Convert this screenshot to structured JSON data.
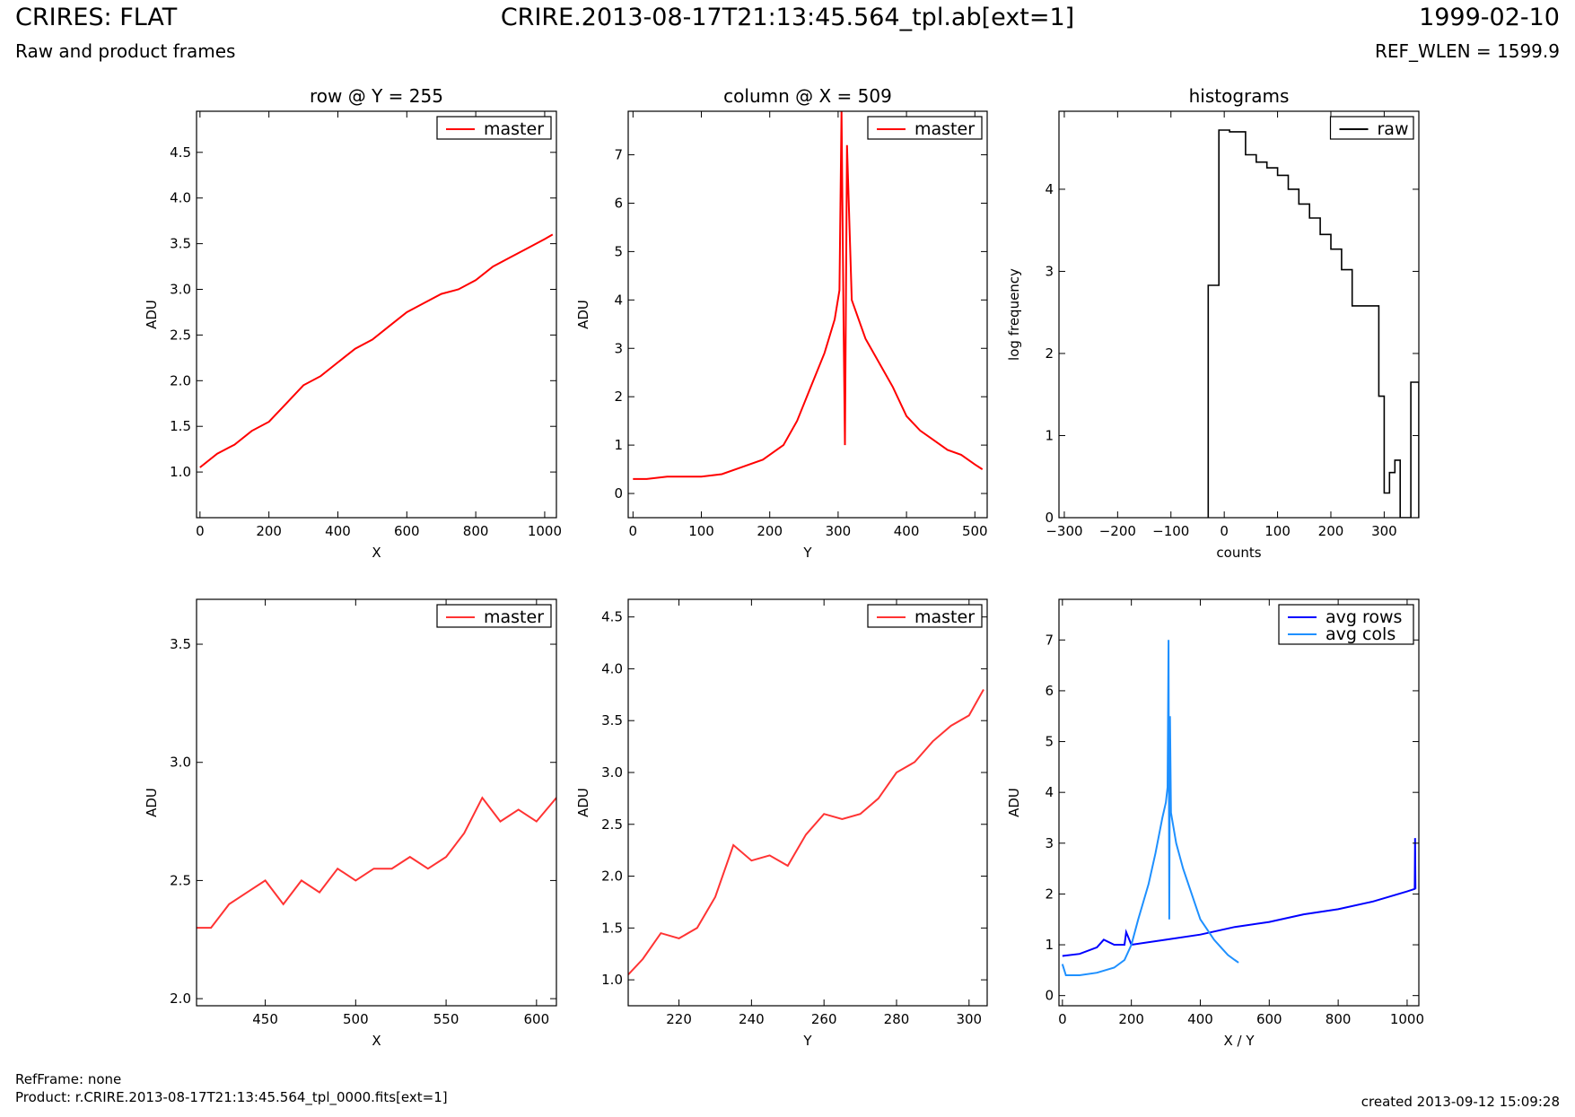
{
  "header": {
    "title": "CRIRES: FLAT",
    "subtitle": "Raw and product frames",
    "file": "CRIRE.2013-08-17T21:13:45.564_tpl.ab[ext=1]",
    "date": "1999-02-10",
    "ref_wlen": "REF_WLEN = 1599.9"
  },
  "footer": {
    "refframe": "RefFrame: none",
    "product": "Product: r.CRIRE.2013-08-17T21:13:45.564_tpl_0000.fits[ext=1]",
    "created": "created 2013-09-12 15:09:28"
  },
  "colors": {
    "red": "#ff0000",
    "light_red": "#ff3333",
    "blue": "#0000ff",
    "light_blue": "#1e90ff",
    "black": "#000000"
  },
  "chart_data": [
    {
      "id": "row",
      "type": "line",
      "title": "row @ Y = 255",
      "xlabel": "X",
      "ylabel": "ADU",
      "xlim": [
        -10,
        1034
      ],
      "ylim": [
        0.5,
        4.95
      ],
      "xticks": [
        0,
        200,
        400,
        600,
        800,
        1000
      ],
      "yticks": [
        1.0,
        1.5,
        2.0,
        2.5,
        3.0,
        3.5,
        4.0,
        4.5
      ],
      "legend": "top-right",
      "series": [
        {
          "name": "master",
          "color": "#ff0000",
          "x": [
            0,
            50,
            100,
            150,
            200,
            250,
            300,
            350,
            400,
            450,
            500,
            550,
            600,
            650,
            700,
            750,
            800,
            850,
            900,
            950,
            1000,
            1023
          ],
          "y": [
            1.05,
            1.2,
            1.3,
            1.45,
            1.55,
            1.75,
            1.95,
            2.05,
            2.2,
            2.35,
            2.45,
            2.6,
            2.75,
            2.85,
            2.95,
            3.0,
            3.1,
            3.25,
            3.35,
            3.45,
            3.55,
            3.6
          ]
        }
      ]
    },
    {
      "id": "col",
      "type": "line",
      "title": "column @ X = 509",
      "xlabel": "Y",
      "ylabel": "ADU",
      "xlim": [
        -7,
        518
      ],
      "ylim": [
        -0.5,
        7.9
      ],
      "xticks": [
        0,
        100,
        200,
        300,
        400,
        500
      ],
      "yticks": [
        0,
        1,
        2,
        3,
        4,
        5,
        6,
        7
      ],
      "legend": "top-right",
      "series": [
        {
          "name": "master",
          "color": "#ff0000",
          "x": [
            0,
            20,
            50,
            80,
            100,
            130,
            160,
            190,
            220,
            240,
            260,
            280,
            295,
            302,
            305,
            308,
            310,
            313,
            320,
            340,
            360,
            380,
            400,
            420,
            440,
            460,
            480,
            500,
            511
          ],
          "y": [
            0.3,
            0.3,
            0.35,
            0.35,
            0.35,
            0.4,
            0.55,
            0.7,
            1.0,
            1.5,
            2.2,
            2.9,
            3.6,
            4.2,
            7.9,
            3.5,
            1.0,
            7.2,
            4.0,
            3.2,
            2.7,
            2.2,
            1.6,
            1.3,
            1.1,
            0.9,
            0.8,
            0.6,
            0.5
          ]
        }
      ]
    },
    {
      "id": "hist",
      "type": "bar",
      "title": "histograms",
      "xlabel": "counts",
      "ylabel": "log frequency",
      "xlim": [
        -310,
        365
      ],
      "ylim": [
        0,
        4.95
      ],
      "xticks": [
        -300,
        -200,
        -100,
        0,
        100,
        200,
        300
      ],
      "yticks": [
        0,
        1,
        2,
        3,
        4
      ],
      "legend": "top-right",
      "series": [
        {
          "name": "raw",
          "color": "#000000",
          "bin_edges": [
            -30,
            -10,
            10,
            40,
            60,
            80,
            100,
            120,
            140,
            160,
            180,
            200,
            220,
            240,
            290,
            300,
            310,
            320,
            330,
            340,
            350,
            365
          ],
          "values": [
            2.83,
            4.72,
            4.7,
            4.42,
            4.33,
            4.26,
            4.17,
            4.0,
            3.82,
            3.65,
            3.45,
            3.27,
            3.02,
            2.58,
            1.48,
            0.3,
            0.55,
            0.7,
            0,
            0,
            1.65
          ]
        }
      ]
    },
    {
      "id": "rowzoom",
      "type": "line",
      "title": "",
      "xlabel": "X",
      "ylabel": "ADU",
      "xlim": [
        412,
        611
      ],
      "ylim": [
        1.97,
        3.69
      ],
      "xticks": [
        450,
        500,
        550,
        600
      ],
      "yticks": [
        2.0,
        2.5,
        3.0,
        3.5
      ],
      "legend": "top-right",
      "series": [
        {
          "name": "master",
          "color": "#ff3333",
          "x": [
            412,
            420,
            430,
            440,
            450,
            460,
            470,
            480,
            490,
            500,
            510,
            520,
            530,
            540,
            550,
            560,
            570,
            580,
            590,
            600,
            611
          ],
          "y": [
            2.3,
            2.3,
            2.4,
            2.45,
            2.5,
            2.4,
            2.5,
            2.45,
            2.55,
            2.5,
            2.55,
            2.55,
            2.6,
            2.55,
            2.6,
            2.7,
            2.85,
            2.75,
            2.8,
            2.75,
            2.85
          ]
        }
      ]
    },
    {
      "id": "colzoom",
      "type": "line",
      "title": "",
      "xlabel": "Y",
      "ylabel": "ADU",
      "xlim": [
        206,
        305
      ],
      "ylim": [
        0.75,
        4.67
      ],
      "xticks": [
        220,
        240,
        260,
        280,
        300
      ],
      "yticks": [
        1.0,
        1.5,
        2.0,
        2.5,
        3.0,
        3.5,
        4.0,
        4.5
      ],
      "legend": "top-right",
      "series": [
        {
          "name": "master",
          "color": "#ff3333",
          "x": [
            206,
            210,
            215,
            220,
            225,
            230,
            235,
            240,
            245,
            250,
            255,
            260,
            265,
            270,
            275,
            280,
            285,
            290,
            295,
            300,
            304
          ],
          "y": [
            1.05,
            1.2,
            1.45,
            1.4,
            1.5,
            1.8,
            2.3,
            2.15,
            2.2,
            2.1,
            2.4,
            2.6,
            2.55,
            2.6,
            2.75,
            3.0,
            3.1,
            3.3,
            3.45,
            3.55,
            3.8
          ]
        }
      ]
    },
    {
      "id": "avg",
      "type": "line",
      "title": "",
      "xlabel": "X / Y",
      "ylabel": "ADU",
      "xlim": [
        -10,
        1034
      ],
      "ylim": [
        -0.2,
        7.8
      ],
      "xticks": [
        0,
        200,
        400,
        600,
        800,
        1000
      ],
      "yticks": [
        0,
        1,
        2,
        3,
        4,
        5,
        6,
        7
      ],
      "legend": "top-right",
      "series": [
        {
          "name": "avg rows",
          "color": "#0000ff",
          "x": [
            0,
            50,
            100,
            120,
            150,
            180,
            185,
            200,
            300,
            400,
            500,
            600,
            700,
            800,
            900,
            1000,
            1022,
            1023,
            1024
          ],
          "y": [
            0.78,
            0.82,
            0.95,
            1.1,
            1.0,
            1.0,
            1.25,
            1.0,
            1.1,
            1.2,
            1.35,
            1.45,
            1.6,
            1.7,
            1.85,
            2.05,
            2.1,
            3.1,
            2.1
          ]
        },
        {
          "name": "avg cols",
          "color": "#1e90ff",
          "x": [
            0,
            10,
            50,
            100,
            150,
            180,
            200,
            220,
            250,
            270,
            290,
            300,
            305,
            308,
            310,
            312,
            315,
            330,
            350,
            380,
            400,
            420,
            440,
            460,
            480,
            500,
            511
          ],
          "y": [
            0.62,
            0.4,
            0.4,
            0.45,
            0.55,
            0.7,
            1.0,
            1.5,
            2.2,
            2.8,
            3.5,
            3.8,
            4.1,
            7.0,
            1.5,
            5.5,
            3.6,
            3.0,
            2.5,
            1.9,
            1.5,
            1.3,
            1.1,
            0.95,
            0.8,
            0.7,
            0.65
          ]
        }
      ]
    }
  ]
}
